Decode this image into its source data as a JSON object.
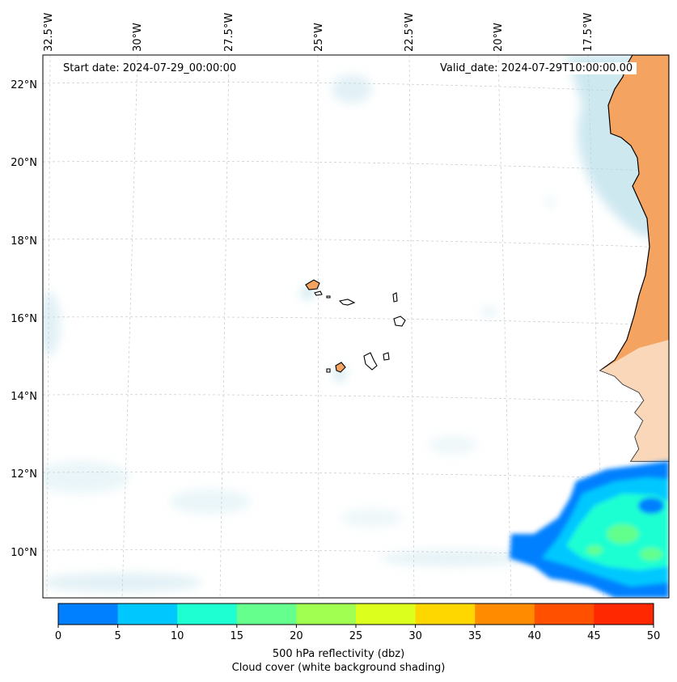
{
  "map": {
    "start_date_text": "Start date: 2024-07-29_00:00:00",
    "valid_date_text": "Valid_date: 2024-07-29T10:00:00.00",
    "longitude_labels": [
      "32.5°W",
      "30°W",
      "27.5°W",
      "25°W",
      "22.5°W",
      "20°W",
      "17.5°W"
    ],
    "latitude_labels": [
      "22°N",
      "20°N",
      "18°N",
      "16°N",
      "14°N",
      "12°N",
      "10°N"
    ],
    "colors": {
      "land": "#f4a460",
      "coast_stroke": "#000000",
      "cloud": "#add8e6",
      "grid": "#b0b0b0"
    }
  },
  "colorbar": {
    "ticks": [
      "0",
      "5",
      "10",
      "15",
      "20",
      "25",
      "30",
      "35",
      "40",
      "45",
      "50"
    ],
    "colors": [
      "#0080ff",
      "#00c8ff",
      "#1effd2",
      "#64ff8c",
      "#a0ff50",
      "#dcff1e",
      "#ffd700",
      "#ff8c00",
      "#ff5000",
      "#ff2800"
    ],
    "label_line1": "500 hPa reflectivity (dbz)",
    "label_line2": "Cloud cover (white background shading)"
  }
}
